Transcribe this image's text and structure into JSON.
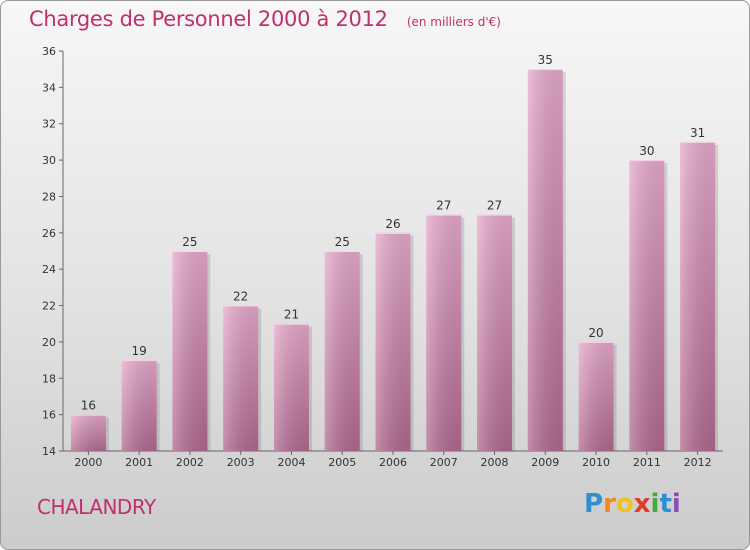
{
  "chart_data": {
    "type": "bar",
    "title": "Charges de Personnel 2000 à 2012",
    "subtitle": "(en milliers d'€)",
    "categories": [
      "2000",
      "2001",
      "2002",
      "2003",
      "2004",
      "2005",
      "2006",
      "2007",
      "2008",
      "2009",
      "2010",
      "2011",
      "2012"
    ],
    "values": [
      16,
      19,
      25,
      22,
      21,
      25,
      26,
      27,
      27,
      35,
      20,
      30,
      31
    ],
    "ylim": [
      14,
      36
    ],
    "yticks": [
      14,
      16,
      18,
      20,
      22,
      24,
      26,
      28,
      30,
      32,
      34,
      36
    ],
    "grid": false,
    "bar_color_top": "#e6a8cc",
    "bar_color_bottom": "#b06890"
  },
  "footer": {
    "commune": "CHALANDRY",
    "logo_text": "Proxiti"
  }
}
